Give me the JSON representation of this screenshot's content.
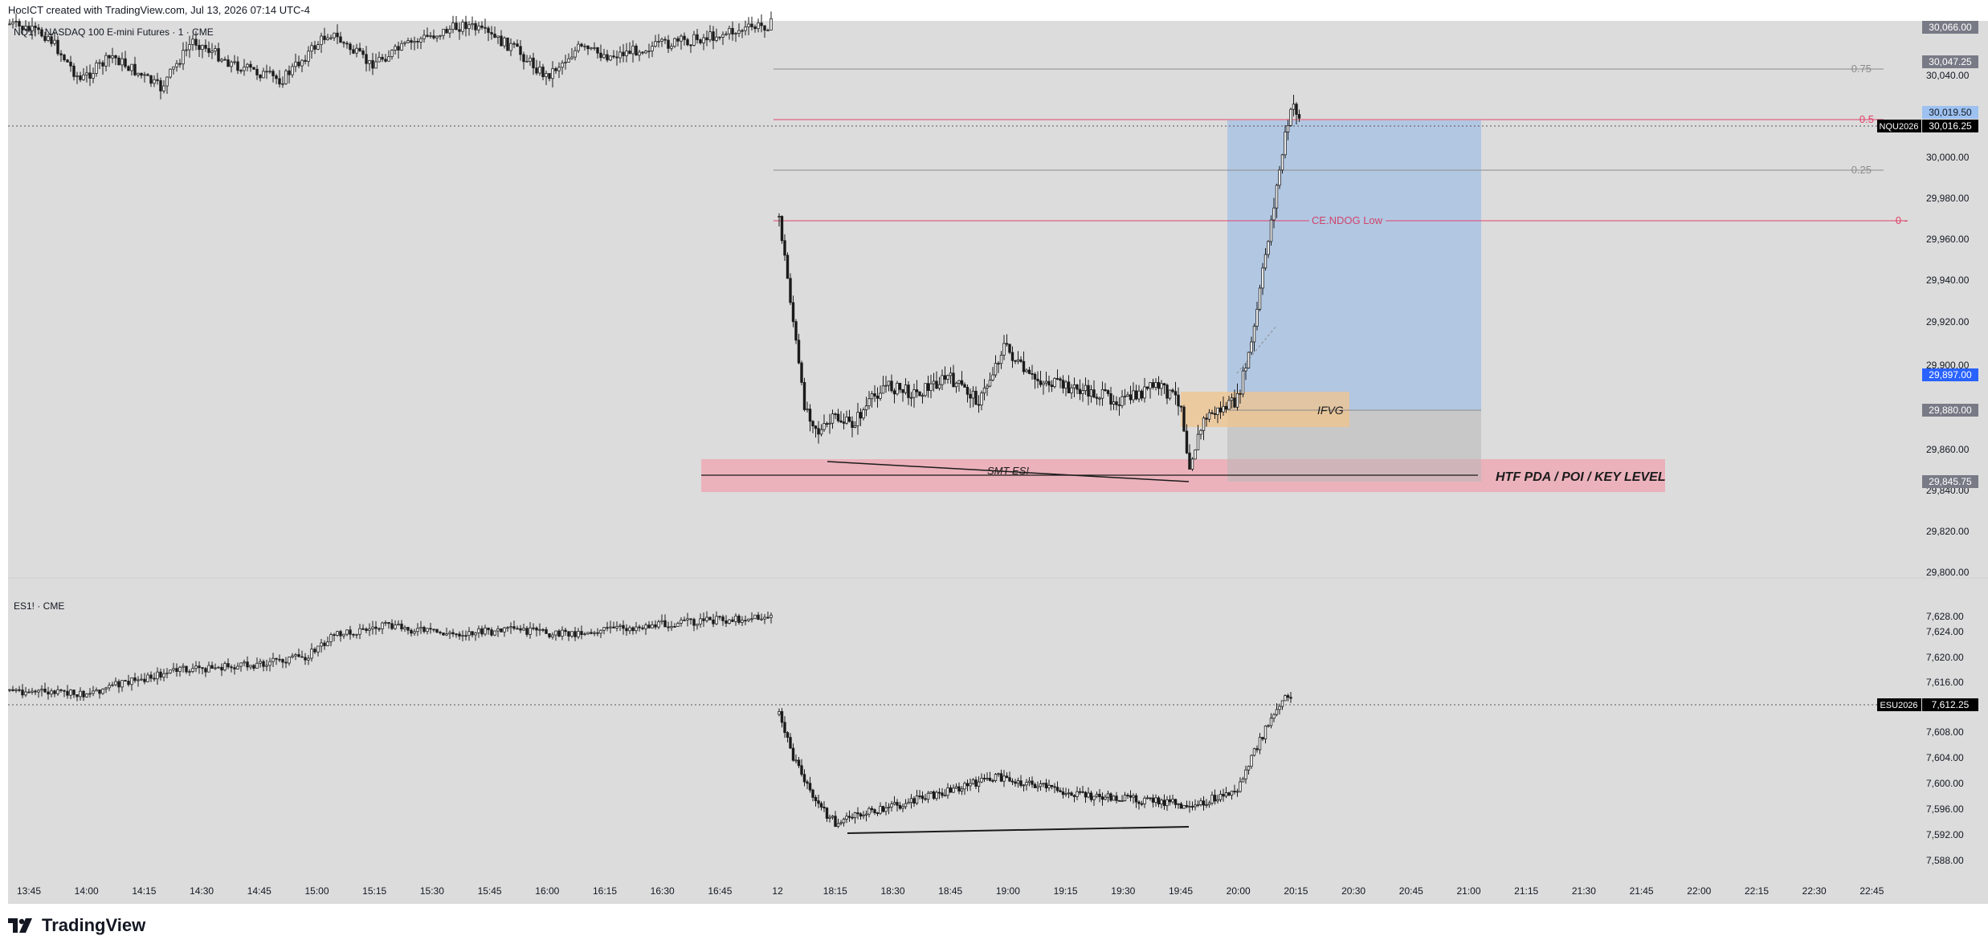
{
  "header": {
    "attribution": "HocICT created with TradingView.com, Jul 13, 2026 07:14 UTC-4"
  },
  "footer": {
    "logo_text": "TradingView"
  },
  "colors": {
    "background": "#dcdcdc",
    "candle": "#1b1b1b",
    "fib_line": "#8c8c8c",
    "red_line": "#e0436a",
    "pink_zone": "#f0a4b0",
    "blue_zone": "#8fb6e8",
    "gray_zone": "#b8b8b8",
    "fvg_zone": "#f1c48c",
    "price_label_bg": "#787b86",
    "nq_symbol_bg": "#000000",
    "blue_price_bg": "#2962ff",
    "light_blue_price_bg": "#9dc1f0"
  },
  "panes": {
    "nq": {
      "legend": "NQ1! · NASDAQ 100 E-mini Futures · 1 · CME",
      "price_axis": [
        "30,040.00",
        "30,000.00",
        "29,980.00",
        "29,960.00",
        "29,940.00",
        "29,920.00",
        "29,900.00",
        "29,860.00",
        "29,840.00",
        "29,820.00",
        "29,800.00"
      ],
      "labels": {
        "top": "30,066.00",
        "fib_075": "30,047.25",
        "entry_top": "30,019.50",
        "symbol": "NQU2026",
        "last": "30,016.25",
        "blue": "29,897.00",
        "ifvg": "29,880.00",
        "htf": "29,845.75"
      },
      "fib": {
        "l075": "0.75",
        "l05": "0.5",
        "l025": "0.25",
        "l0": "0 -"
      },
      "drawings": {
        "ce_label": "CE.NDOG Low",
        "smt_label": "SMT ES!",
        "ifvg_label": "IFVG",
        "htf_label": "HTF PDA / POI / KEY LEVEL"
      }
    },
    "es": {
      "legend": "ES1! · CME",
      "price_axis": [
        "7,628.00",
        "7,624.00",
        "7,620.00",
        "7,616.00",
        "7,608.00",
        "7,604.00",
        "7,600.00",
        "7,596.00",
        "7,592.00",
        "7,588.00"
      ],
      "labels": {
        "symbol": "ESU2026",
        "last": "7,612.25"
      }
    }
  },
  "time_axis": [
    "13:45",
    "14:00",
    "14:15",
    "14:30",
    "14:45",
    "15:00",
    "15:15",
    "15:30",
    "15:45",
    "16:00",
    "16:15",
    "16:30",
    "16:45",
    "12",
    "18:15",
    "18:30",
    "18:45",
    "19:00",
    "19:15",
    "19:30",
    "19:45",
    "20:00",
    "20:15",
    "20:30",
    "20:45",
    "21:00",
    "21:15",
    "21:30",
    "21:45",
    "22:00",
    "22:15",
    "22:30",
    "22:45"
  ]
}
